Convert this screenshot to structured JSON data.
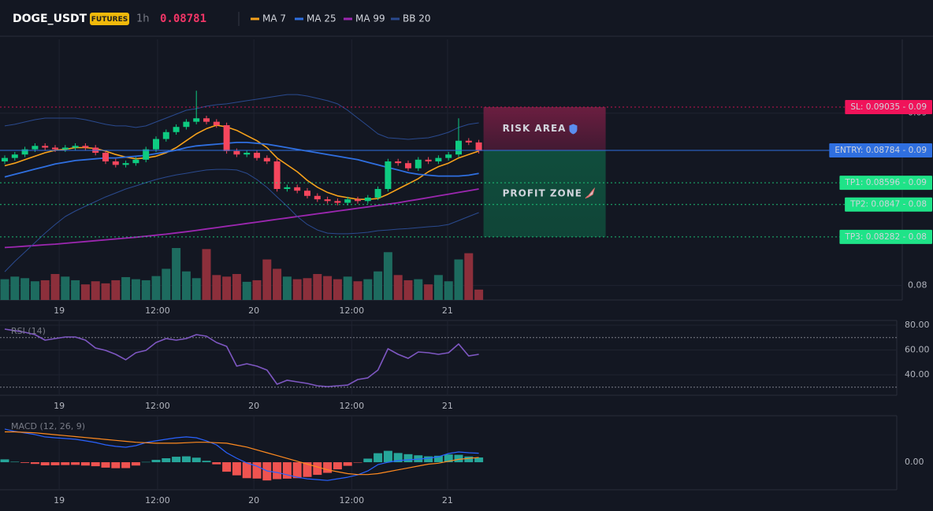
{
  "header": {
    "symbol": "DOGE_USDT",
    "badge": "FUTURES",
    "interval": "1h",
    "price": 0.08781
  },
  "chart_data": [
    {
      "type": "candlestick",
      "up_color": "#0ecb81",
      "down_color": "#f6465d",
      "open": [
        0.0872,
        0.0874,
        0.0876,
        0.0879,
        0.0881,
        0.088,
        0.0879,
        0.088,
        0.0881,
        0.088,
        0.0877,
        0.0872,
        0.087,
        0.0871,
        0.0873,
        0.0879,
        0.0885,
        0.0889,
        0.0892,
        0.0895,
        0.0897,
        0.0895,
        0.0893,
        0.0878,
        0.0876,
        0.0877,
        0.0874,
        0.0872,
        0.0856,
        0.0857,
        0.0855,
        0.0852,
        0.085,
        0.0849,
        0.0848,
        0.085,
        0.0849,
        0.0851,
        0.0856,
        0.0872,
        0.0871,
        0.0868,
        0.0873,
        0.0872,
        0.0874,
        0.0876,
        0.0884,
        0.0883
      ],
      "high": [
        0.08755,
        0.08775,
        0.08805,
        0.08825,
        0.08825,
        0.08815,
        0.08815,
        0.08825,
        0.08825,
        0.08815,
        0.08785,
        0.08735,
        0.08725,
        0.08745,
        0.08805,
        0.08865,
        0.08905,
        0.08935,
        0.08965,
        0.0913,
        0.08985,
        0.08965,
        0.08945,
        0.08795,
        0.08785,
        0.08785,
        0.08755,
        0.08735,
        0.08585,
        0.08585,
        0.08565,
        0.08535,
        0.08515,
        0.08505,
        0.08515,
        0.08515,
        0.08525,
        0.08575,
        0.08735,
        0.08735,
        0.08725,
        0.08745,
        0.08745,
        0.08755,
        0.08775,
        0.0897,
        0.08855,
        0.08845
      ],
      "low": [
        0.08705,
        0.08725,
        0.08745,
        0.08775,
        0.08785,
        0.08775,
        0.08775,
        0.08785,
        0.08785,
        0.08755,
        0.08705,
        0.08685,
        0.08685,
        0.08695,
        0.08715,
        0.08775,
        0.08835,
        0.08875,
        0.08905,
        0.08935,
        0.08935,
        0.08915,
        0.08765,
        0.08745,
        0.08745,
        0.08725,
        0.08705,
        0.08545,
        0.08545,
        0.08535,
        0.08505,
        0.08485,
        0.08475,
        0.08465,
        0.08465,
        0.08475,
        0.08475,
        0.08495,
        0.08545,
        0.08695,
        0.08665,
        0.08665,
        0.08705,
        0.08705,
        0.08725,
        0.08745,
        0.08815,
        0.08766
      ],
      "close": [
        0.0874,
        0.0876,
        0.0879,
        0.0881,
        0.088,
        0.0879,
        0.088,
        0.0881,
        0.088,
        0.0877,
        0.0872,
        0.087,
        0.0871,
        0.0873,
        0.0879,
        0.0885,
        0.0889,
        0.0892,
        0.0895,
        0.0897,
        0.0895,
        0.0893,
        0.0878,
        0.0876,
        0.0877,
        0.0874,
        0.0872,
        0.0856,
        0.0857,
        0.0855,
        0.0852,
        0.085,
        0.0849,
        0.0848,
        0.085,
        0.0849,
        0.0851,
        0.0856,
        0.0872,
        0.0871,
        0.0868,
        0.0873,
        0.0872,
        0.0874,
        0.0876,
        0.0884,
        0.0883,
        0.08781
      ],
      "volume": {
        "up_color": "#1d6b5f",
        "down_color": "#8c2f3b",
        "values": [
          40,
          45,
          42,
          36,
          38,
          50,
          45,
          38,
          30,
          36,
          32,
          38,
          44,
          40,
          38,
          46,
          60,
          100,
          55,
          42,
          98,
          48,
          45,
          50,
          35,
          38,
          78,
          60,
          45,
          40,
          42,
          50,
          46,
          40,
          45,
          36,
          40,
          55,
          92,
          48,
          38,
          40,
          30,
          48,
          36,
          78,
          90,
          20
        ]
      },
      "lines": [
        {
          "name": "MA 7",
          "color": "#f7a21b",
          "width": 1.6,
          "values": [
            0.08695,
            0.0871,
            0.0873,
            0.0875,
            0.0877,
            0.08785,
            0.0879,
            0.088,
            0.088,
            0.08795,
            0.0878,
            0.0876,
            0.08745,
            0.08735,
            0.0874,
            0.0875,
            0.0877,
            0.088,
            0.0884,
            0.0888,
            0.0891,
            0.0893,
            0.0892,
            0.089,
            0.0887,
            0.0884,
            0.088,
            0.0874,
            0.087,
            0.0866,
            0.0861,
            0.0857,
            0.0854,
            0.0852,
            0.0851,
            0.085,
            0.085,
            0.08505,
            0.0853,
            0.0856,
            0.0859,
            0.0862,
            0.0866,
            0.0869,
            0.0871,
            0.0874,
            0.0876,
            0.0878
          ]
        },
        {
          "name": "MA 25",
          "color": "#2f6fe0",
          "width": 1.8,
          "values": [
            0.0863,
            0.08645,
            0.0866,
            0.08675,
            0.0869,
            0.08705,
            0.08715,
            0.08725,
            0.0873,
            0.08735,
            0.0874,
            0.0874,
            0.08745,
            0.0875,
            0.08755,
            0.08765,
            0.08775,
            0.08785,
            0.088,
            0.0881,
            0.08815,
            0.0882,
            0.08825,
            0.0883,
            0.0883,
            0.08825,
            0.0882,
            0.0881,
            0.088,
            0.0879,
            0.0878,
            0.0877,
            0.0876,
            0.0875,
            0.0874,
            0.0873,
            0.08715,
            0.087,
            0.08685,
            0.0867,
            0.08655,
            0.08645,
            0.0864,
            0.08635,
            0.08635,
            0.08635,
            0.0864,
            0.0865
          ]
        },
        {
          "name": "MA 99",
          "color": "#9c27b0",
          "width": 1.8,
          "values": [
            0.0822,
            0.08224,
            0.08228,
            0.08232,
            0.08236,
            0.0824,
            0.08245,
            0.0825,
            0.08255,
            0.0826,
            0.08265,
            0.0827,
            0.08275,
            0.0828,
            0.08286,
            0.08292,
            0.08298,
            0.08305,
            0.08312,
            0.0832,
            0.08328,
            0.08336,
            0.08344,
            0.08352,
            0.0836,
            0.08368,
            0.08376,
            0.08384,
            0.08392,
            0.084,
            0.08408,
            0.08416,
            0.08424,
            0.08432,
            0.0844,
            0.08448,
            0.08456,
            0.08464,
            0.08472,
            0.0848,
            0.0849,
            0.085,
            0.0851,
            0.0852,
            0.0853,
            0.0854,
            0.0855,
            0.0856
          ]
        },
        {
          "name": "BB 20",
          "color": "#2a4a8f",
          "width": 1,
          "upper": [
            0.08926,
            0.08935,
            0.08949,
            0.08962,
            0.08971,
            0.08971,
            0.08971,
            0.08971,
            0.08962,
            0.08949,
            0.08935,
            0.08926,
            0.08926,
            0.08917,
            0.08926,
            0.08949,
            0.08971,
            0.08994,
            0.09017,
            0.09026,
            0.0904,
            0.09049,
            0.09054,
            0.09063,
            0.09072,
            0.09081,
            0.0909,
            0.09099,
            0.09108,
            0.09108,
            0.09099,
            0.09086,
            0.09072,
            0.09054,
            0.09017,
            0.08971,
            0.08926,
            0.0888,
            0.08857,
            0.08853,
            0.08848,
            0.08853,
            0.08857,
            0.08871,
            0.08889,
            0.08917,
            0.08935,
            0.08944
          ],
          "lower": [
            0.0808,
            0.0814,
            0.08194,
            0.08249,
            0.08304,
            0.08354,
            0.084,
            0.08432,
            0.0846,
            0.08487,
            0.08514,
            0.08537,
            0.0856,
            0.08578,
            0.08597,
            0.08615,
            0.08629,
            0.08642,
            0.08651,
            0.08661,
            0.0867,
            0.08674,
            0.08674,
            0.0867,
            0.08651,
            0.08615,
            0.08569,
            0.08514,
            0.0846,
            0.084,
            0.08354,
            0.08322,
            0.08304,
            0.083,
            0.083,
            0.08304,
            0.08309,
            0.08318,
            0.08322,
            0.08327,
            0.08331,
            0.08336,
            0.08341,
            0.08345,
            0.08354,
            0.08377,
            0.084,
            0.08423
          ]
        }
      ],
      "levels": [
        {
          "label": "SL: 0.09035 - 0.09",
          "value": 0.09035,
          "color": "#f0135a",
          "text_color": "#ffffff",
          "dashed": true
        },
        {
          "label": "ENTRY: 0.08784 - 0.09",
          "value": 0.08784,
          "color": "#2f6fe0",
          "text_color": "#ffffff",
          "dashed": false
        },
        {
          "label": "TP1: 0.08596 - 0.09",
          "value": 0.08596,
          "color": "#1fe388",
          "text_color": "#0b1f16",
          "dashed": true
        },
        {
          "label": "TP2: 0.0847 - 0.08",
          "value": 0.0847,
          "color": "#1fe388",
          "text_color": "#0b1f16",
          "dashed": true
        },
        {
          "label": "TP3: 0.08282 - 0.08",
          "value": 0.08282,
          "color": "#1fe388",
          "text_color": "#0b1f16",
          "dashed": true
        }
      ],
      "zones": [
        {
          "label": "RISK AREA",
          "color": "#e2336b"
        },
        {
          "label": "PROFIT ZONE",
          "color": "#34d399"
        }
      ],
      "ylim": [
        0.07916,
        0.09428
      ],
      "yticks": [
        0.08,
        0.09
      ],
      "xticks": [
        {
          "value": 5.4,
          "label": "19"
        },
        {
          "value": 15.15,
          "label": "12:00"
        },
        {
          "value": 24.7,
          "label": "20"
        },
        {
          "value": 34.4,
          "label": "12:00"
        },
        {
          "value": 43.9,
          "label": "21"
        }
      ],
      "grid": true
    },
    {
      "type": "line",
      "title": "RSI (14)",
      "color": "#7e57c2",
      "values": [
        76.8,
        75.6,
        74.3,
        72.4,
        67.9,
        69.2,
        70.5,
        70.5,
        67.9,
        61.6,
        59.7,
        56.5,
        52.1,
        57.8,
        59.7,
        66.0,
        69.2,
        67.9,
        69.2,
        72.4,
        71.1,
        66.0,
        62.9,
        47.0,
        48.9,
        47.0,
        43.8,
        32.4,
        35.6,
        34.3,
        33.0,
        31.1,
        30.5,
        31.1,
        31.7,
        36.2,
        37.5,
        43.8,
        61.0,
        56.5,
        53.3,
        58.4,
        57.8,
        56.5,
        57.8,
        64.8,
        55.2,
        56.5
      ],
      "bands": [
        70,
        30
      ],
      "ylim": [
        23.5,
        83.8
      ],
      "yticks": [
        {
          "value": 80,
          "label": "80.00"
        },
        {
          "value": 60,
          "label": "60.00"
        },
        {
          "value": 40,
          "label": "40.00"
        }
      ]
    },
    {
      "type": "macd",
      "title": "MACD (12, 26, 9)",
      "macd": {
        "color": "#2962ff",
        "values": [
          0.00035,
          0.000325,
          0.000308,
          0.000292,
          0.000267,
          0.000258,
          0.00025,
          0.000242,
          0.000225,
          0.000208,
          0.000183,
          0.000167,
          0.000158,
          0.000175,
          0.000208,
          0.000225,
          0.000242,
          0.000258,
          0.000267,
          0.000258,
          0.000225,
          0.000183,
          0.0001,
          4.2e-05,
          -8e-06,
          -4.2e-05,
          -9.2e-05,
          -0.000108,
          -0.000133,
          -0.000158,
          -0.000175,
          -0.000183,
          -0.000192,
          -0.000175,
          -0.000158,
          -0.000133,
          -9.2e-05,
          -2.5e-05,
          0,
          1.7e-05,
          2.5e-05,
          3.3e-05,
          4.2e-05,
          5.8e-05,
          9.2e-05,
          0.000108,
          0.0001,
          9.5e-05
        ]
      },
      "signal": {
        "color": "#ff8a1f",
        "values": [
          0.00032,
          0.00032,
          0.000315,
          0.00031,
          0.0003,
          0.00029,
          0.00028,
          0.00027,
          0.00026,
          0.00025,
          0.00024,
          0.00023,
          0.00022,
          0.00021,
          0.000205,
          0.0002,
          0.0002,
          0.0002,
          0.000205,
          0.00021,
          0.00021,
          0.000205,
          0.0002,
          0.00018,
          0.00016,
          0.00013,
          0.0001,
          7e-05,
          4e-05,
          1e-05,
          -2e-05,
          -5e-05,
          -8e-05,
          -0.0001,
          -0.00012,
          -0.00013,
          -0.00013,
          -0.00012,
          -0.0001,
          -8e-05,
          -6e-05,
          -4e-05,
          -2e-05,
          -1e-05,
          1e-05,
          3e-05,
          4e-05,
          5e-05
        ]
      },
      "histogram": {
        "up_color": "#26a69a",
        "down_color": "#ef5350",
        "values": [
          3e-05,
          5e-06,
          -7e-06,
          -1.8e-05,
          -3.3e-05,
          -3.2e-05,
          -3e-05,
          -2.8e-05,
          -3.5e-05,
          -4.2e-05,
          -5.7e-05,
          -6.3e-05,
          -6.2e-05,
          -3.5e-05,
          3e-06,
          2.5e-05,
          4.2e-05,
          5.8e-05,
          6.2e-05,
          4.8e-05,
          1.5e-05,
          -2.2e-05,
          -0.0001,
          -0.000138,
          -0.000168,
          -0.000172,
          -0.000192,
          -0.000178,
          -0.000173,
          -0.000168,
          -0.000155,
          -0.000133,
          -0.000112,
          -7.5e-05,
          -3.8e-05,
          -3e-06,
          3.8e-05,
          9.5e-05,
          0.00012,
          9.7e-05,
          8.5e-05,
          7.3e-05,
          6.2e-05,
          6.8e-05,
          8.2e-05,
          7.8e-05,
          6e-05,
          5e-05
        ]
      },
      "ylim": [
        -0.00029,
        0.00049
      ],
      "yticks": [
        {
          "value": 0,
          "label": "0.00"
        }
      ]
    }
  ]
}
